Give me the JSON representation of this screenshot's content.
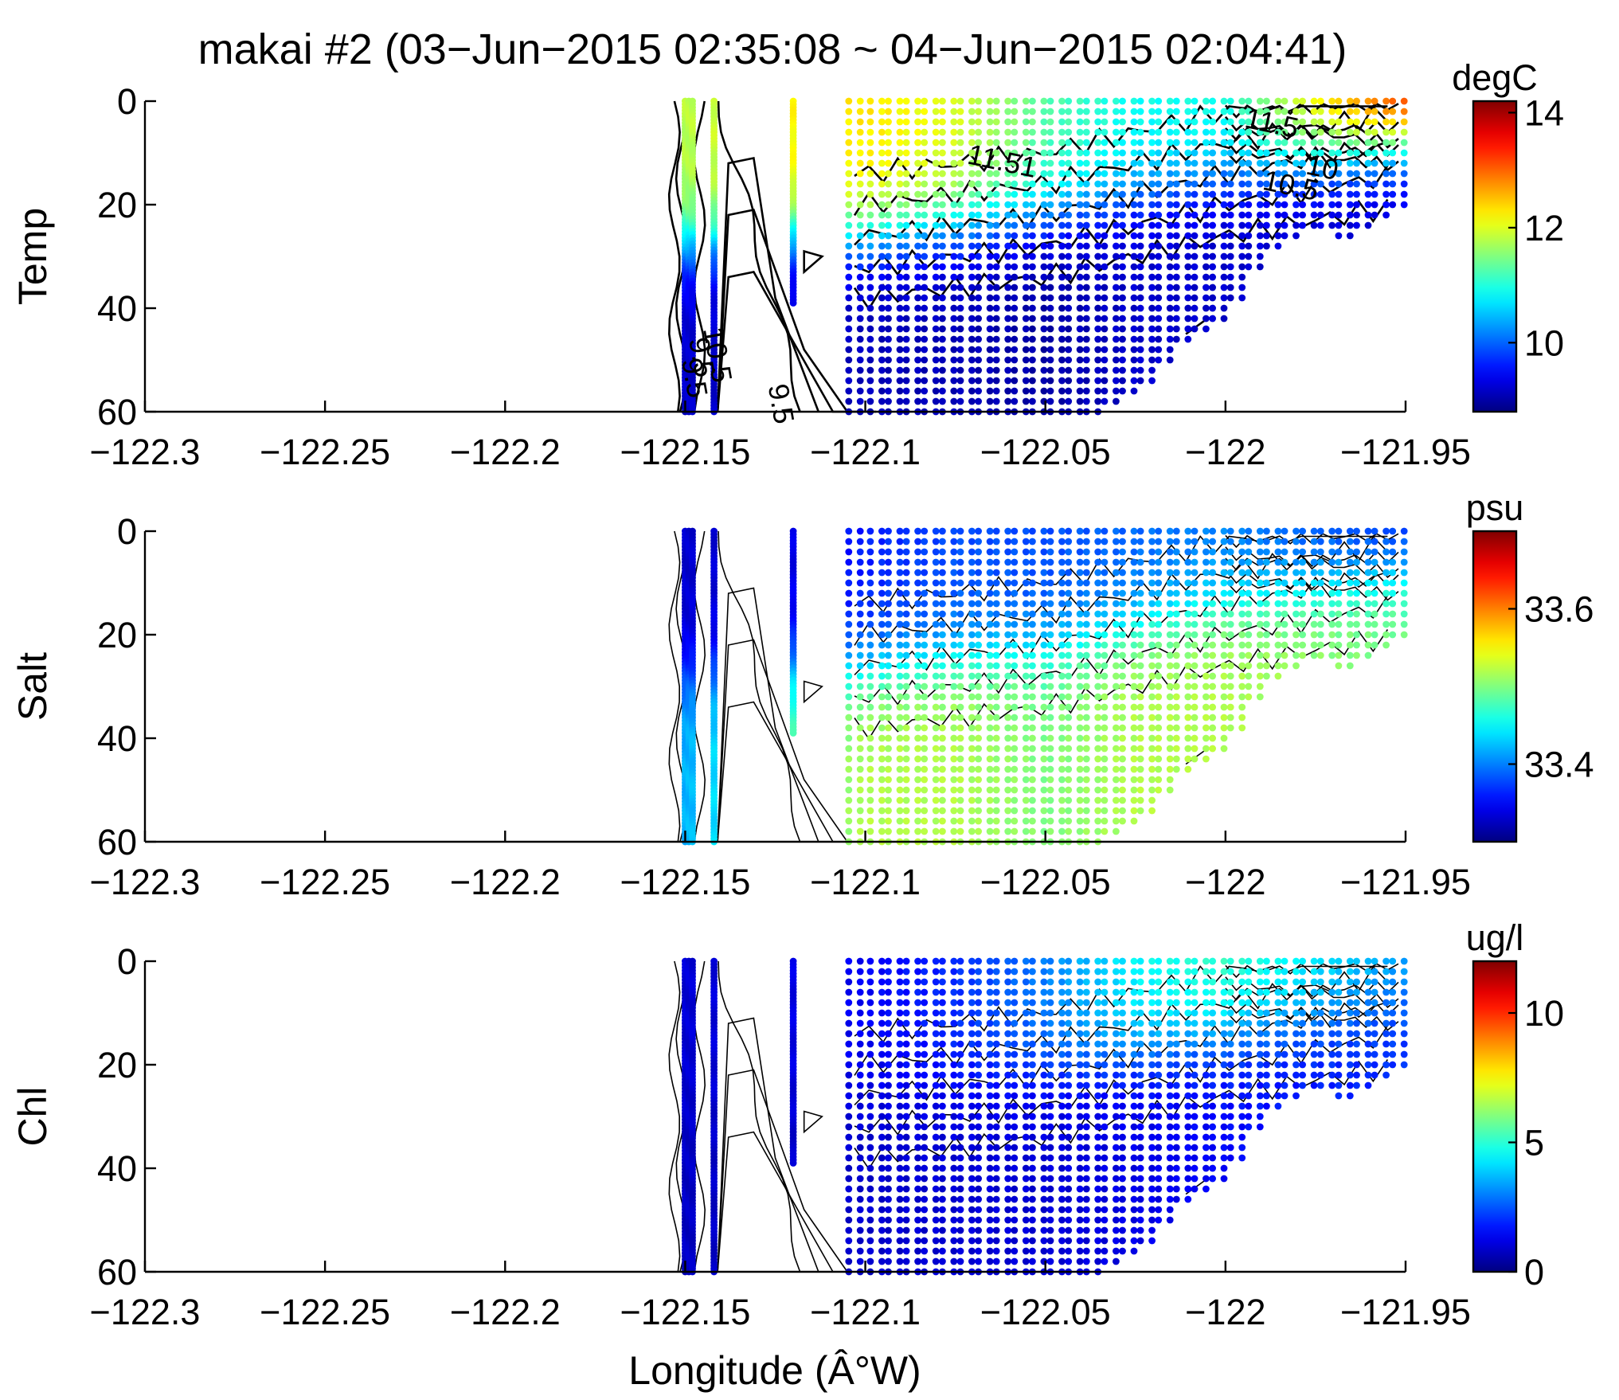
{
  "figure": {
    "title": "makai #2 (03−Jun−2015 02:35:08 ~ 04−Jun−2015 02:04:41)",
    "xlabel": "Longitude (Â°W)"
  },
  "chart_data": [
    {
      "type": "scatter",
      "name": "Temp",
      "ylabel": "Temp",
      "colorbar_label": "degC",
      "xlim": [
        -122.3,
        -121.95
      ],
      "ylim": [
        60,
        0
      ],
      "y_reversed": true,
      "xticks": [
        "−122.3",
        "−122.25",
        "−122.2",
        "−122.15",
        "−122.1",
        "−122.05",
        "−122",
        "−121.95"
      ],
      "yticks": [
        "0",
        "20",
        "40",
        "60"
      ],
      "clim": [
        8.8,
        14.2
      ],
      "cticks": [
        "10",
        "12",
        "14"
      ],
      "contour_labels": [
        "11.51",
        "11.5",
        "10.5",
        "10",
        "9.5",
        "9.5",
        "10.5",
        "9.5"
      ],
      "surface": [
        11.8,
        12.2,
        12.3,
        12.0,
        11.3,
        10.9,
        11.0,
        13.6
      ],
      "deep": [
        9.2,
        9.2,
        9.1,
        9.1,
        9.0,
        9.2,
        9.2,
        9.2
      ],
      "thermo": [
        28,
        26,
        26,
        24,
        22,
        18,
        14,
        8
      ]
    },
    {
      "type": "scatter",
      "name": "Salt",
      "ylabel": "Salt",
      "colorbar_label": "psu",
      "xlim": [
        -122.3,
        -121.95
      ],
      "ylim": [
        60,
        0
      ],
      "y_reversed": true,
      "xticks": [
        "−122.3",
        "−122.25",
        "−122.2",
        "−122.15",
        "−122.1",
        "−122.05",
        "−122",
        "−121.95"
      ],
      "yticks": [
        "0",
        "20",
        "40",
        "60"
      ],
      "clim": [
        33.3,
        33.7
      ],
      "cticks": [
        "33.4",
        "33.6"
      ],
      "surface": [
        33.33,
        33.34,
        33.36,
        33.38,
        33.38,
        33.39,
        33.4,
        33.36
      ],
      "deep": [
        33.42,
        33.48,
        33.52,
        33.52,
        33.5,
        33.52,
        33.52,
        33.5
      ],
      "thermo": [
        28,
        26,
        26,
        24,
        22,
        18,
        14,
        8
      ]
    },
    {
      "type": "scatter",
      "name": "Chl",
      "ylabel": "Chl",
      "colorbar_label": "ug/l",
      "xlim": [
        -122.3,
        -121.95
      ],
      "ylim": [
        60,
        0
      ],
      "y_reversed": true,
      "xticks": [
        "−122.3",
        "−122.25",
        "−122.2",
        "−122.15",
        "−122.1",
        "−122.05",
        "−122",
        "−121.95"
      ],
      "yticks": [
        "0",
        "20",
        "40",
        "60"
      ],
      "clim": [
        0,
        12
      ],
      "cticks": [
        "0",
        "5",
        "10"
      ],
      "surface": [
        1.0,
        1.2,
        1.4,
        2.0,
        3.0,
        4.5,
        5.2,
        3.5
      ],
      "deep": [
        0.8,
        0.9,
        0.9,
        1.0,
        1.0,
        1.2,
        1.5,
        2.0
      ],
      "thermo": [
        28,
        26,
        26,
        24,
        22,
        18,
        14,
        8
      ]
    }
  ],
  "sampling": {
    "profile_lon": [
      -122.15,
      -122.149,
      -122.148,
      -122.142,
      -122.12,
      -122.103,
      -122.097,
      -122.092,
      -122.087,
      -122.082,
      -122.077,
      -122.072,
      -122.067,
      -122.062,
      -122.057,
      -122.052,
      -122.047,
      -122.042,
      -122.037,
      -122.032,
      -122.027,
      -122.022,
      -122.017,
      -122.012,
      -122.007,
      -122.002,
      -121.997,
      -121.992,
      -121.987,
      -121.982,
      -121.977,
      -121.972,
      -121.967,
      -121.962,
      -121.957,
      -121.952
    ],
    "profile_max_depth": [
      60,
      60,
      60,
      60,
      39,
      60,
      60,
      60,
      60,
      60,
      60,
      60,
      60,
      60,
      60,
      60,
      60,
      60,
      60,
      58,
      56,
      54,
      50,
      47,
      45,
      42,
      38,
      32,
      28,
      27,
      25,
      25,
      26,
      24,
      22,
      21
    ],
    "anchor_lon": [
      -122.15,
      -122.12,
      -122.1,
      -122.075,
      -122.05,
      -122.025,
      -122.0,
      -121.95
    ]
  }
}
